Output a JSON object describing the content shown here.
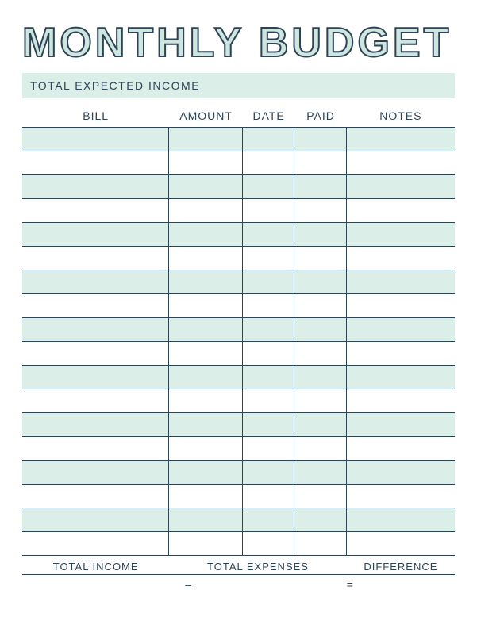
{
  "colors": {
    "title_stroke": "#2d4356",
    "title_fill": "#cfe5df",
    "text": "#2d4356",
    "band": "#dbeee8",
    "border": "#2d4356",
    "row_alt": "#dbeee8",
    "row_bg": "#ffffff"
  },
  "title": "MONTHLY BUDGET",
  "income_label": "TOTAL EXPECTED INCOME",
  "columns": {
    "bill": "BILL",
    "amount": "AMOUNT",
    "date": "DATE",
    "paid": "PAID",
    "notes": "NOTES"
  },
  "row_count": 18,
  "footer": {
    "total_income": "TOTAL INCOME",
    "total_expenses": "TOTAL EXPENSES",
    "difference": "DIFFERENCE",
    "op_minus": "–",
    "op_equals": "="
  }
}
